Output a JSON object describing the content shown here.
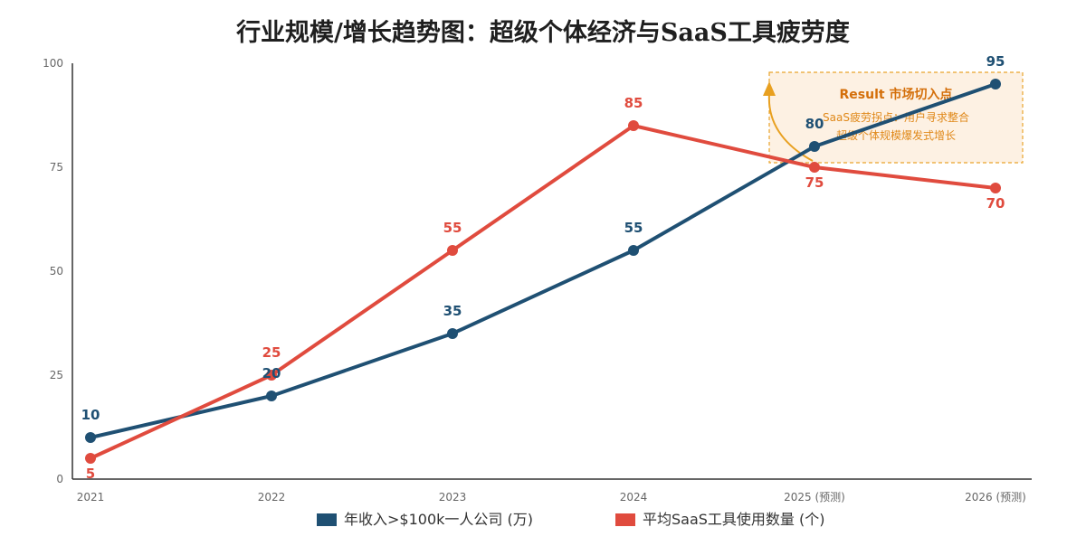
{
  "chart_data": {
    "type": "line",
    "title": "行业规模/增长趋势图：超级个体经济与SaaS工具疲劳度",
    "categories": [
      "2021",
      "2022",
      "2023",
      "2024",
      "2025 (预测)",
      "2026 (预测)"
    ],
    "ylim": [
      0,
      100
    ],
    "yticks": [
      0,
      25,
      50,
      75,
      100
    ],
    "grid": false,
    "legend_position": "bottom",
    "series": [
      {
        "name": "年收入>$100k一人公司 (万)",
        "color": "#1f5073",
        "values": [
          10,
          20,
          35,
          55,
          80,
          95
        ]
      },
      {
        "name": "平均SaaS工具使用数量 (个)",
        "color": "#e04b3e",
        "values": [
          5,
          25,
          55,
          85,
          75,
          70
        ]
      }
    ],
    "annotation": {
      "title": "Result 市场切入点",
      "lines": [
        "SaaS疲劳拐点：用户寻求整合",
        "超级个体规模爆发式增长"
      ],
      "color": "#e8a020",
      "fill": "#fdf1e2"
    }
  }
}
